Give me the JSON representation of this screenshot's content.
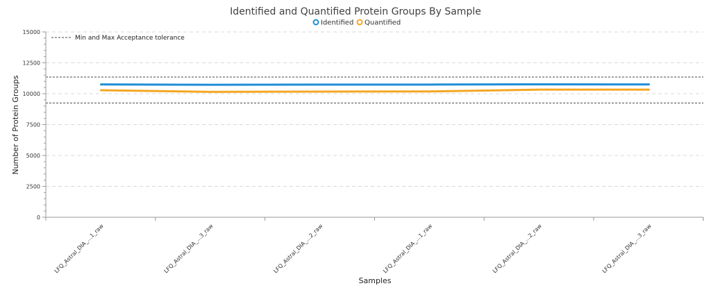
{
  "chart_data": {
    "type": "line",
    "title": "Identified and Quantified Protein Groups By Sample",
    "xlabel": "Samples",
    "ylabel": "Number of Protein Groups",
    "categories": [
      "LFQ_Astral_DIA_...1_raw",
      "LFQ_Astral_DIA_...3_raw",
      "LFQ_Astral_DIA_...2_raw",
      "LFQ_Astral_DIA_...1_raw",
      "LFQ_Astral_DIA_...2_raw",
      "LFQ_Astral_DIA_...3_raw"
    ],
    "series": [
      {
        "name": "Identified",
        "color": "#1f8dd6",
        "values": [
          10750,
          10720,
          10740,
          10740,
          10760,
          10750
        ]
      },
      {
        "name": "Quantified",
        "color": "#f5a623",
        "values": [
          10280,
          10150,
          10170,
          10180,
          10330,
          10330
        ]
      }
    ],
    "acceptance": {
      "label": "Min and Max Acceptance tolerance",
      "min": 9250,
      "max": 11350
    },
    "yticks": [
      0,
      2500,
      5000,
      7500,
      10000,
      12500,
      15000
    ],
    "ylim": [
      0,
      15000
    ],
    "grid": true,
    "legend_position": "top-center"
  }
}
